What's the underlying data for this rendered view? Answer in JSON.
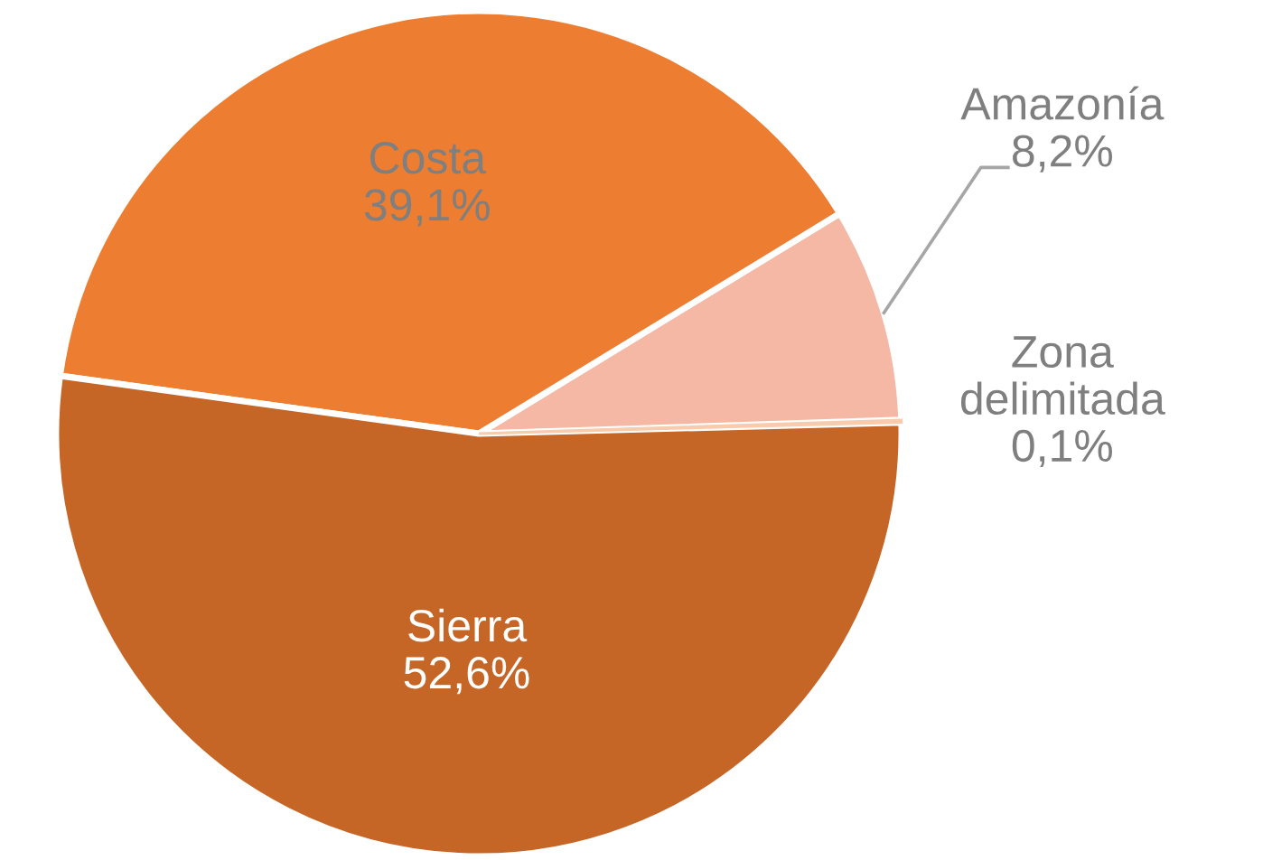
{
  "chart_data": {
    "type": "pie",
    "categories": [
      "Zona delimitada",
      "Amazonía",
      "Costa",
      "Sierra"
    ],
    "values": [
      0.1,
      8.2,
      39.1,
      52.6
    ],
    "value_labels": [
      "0,1%",
      "8,2%",
      "39,1%",
      "52,6%"
    ],
    "colors": [
      "#f8cbad",
      "#f4b8a4",
      "#ed7d31",
      "#c56526"
    ]
  }
}
